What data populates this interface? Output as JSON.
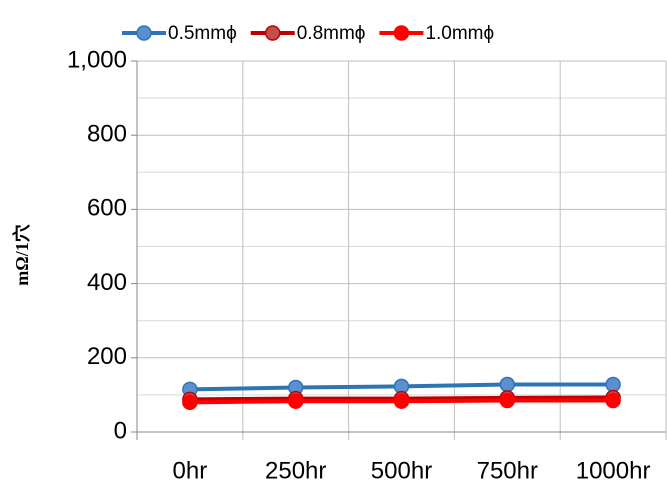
{
  "chart_data": {
    "type": "line",
    "y_label": "mΩ/1穴",
    "categories": [
      "0hr",
      "250hr",
      "500hr",
      "750hr",
      "1000hr"
    ],
    "series": [
      {
        "name": "0.5mmϕ",
        "color": "#2e75b6",
        "marker_color": "#5b8fd0",
        "values": [
          115,
          120,
          123,
          128,
          128
        ]
      },
      {
        "name": "0.8mmϕ",
        "color": "#c00000",
        "marker_color": "#c0504d",
        "values": [
          88,
          90,
          90,
          92,
          93
        ]
      },
      {
        "name": "1.0mmϕ",
        "color": "#ff0000",
        "marker_color": "#ff0000",
        "values": [
          80,
          83,
          83,
          85,
          85
        ]
      }
    ],
    "ylim": [
      0,
      1000
    ],
    "yticks": [
      0,
      200,
      400,
      600,
      800,
      {
        "value": 1000,
        "label": "1,000"
      }
    ],
    "y_minor_ticks": [
      100,
      300,
      500,
      700,
      900
    ],
    "grid": true,
    "legend": "top"
  }
}
